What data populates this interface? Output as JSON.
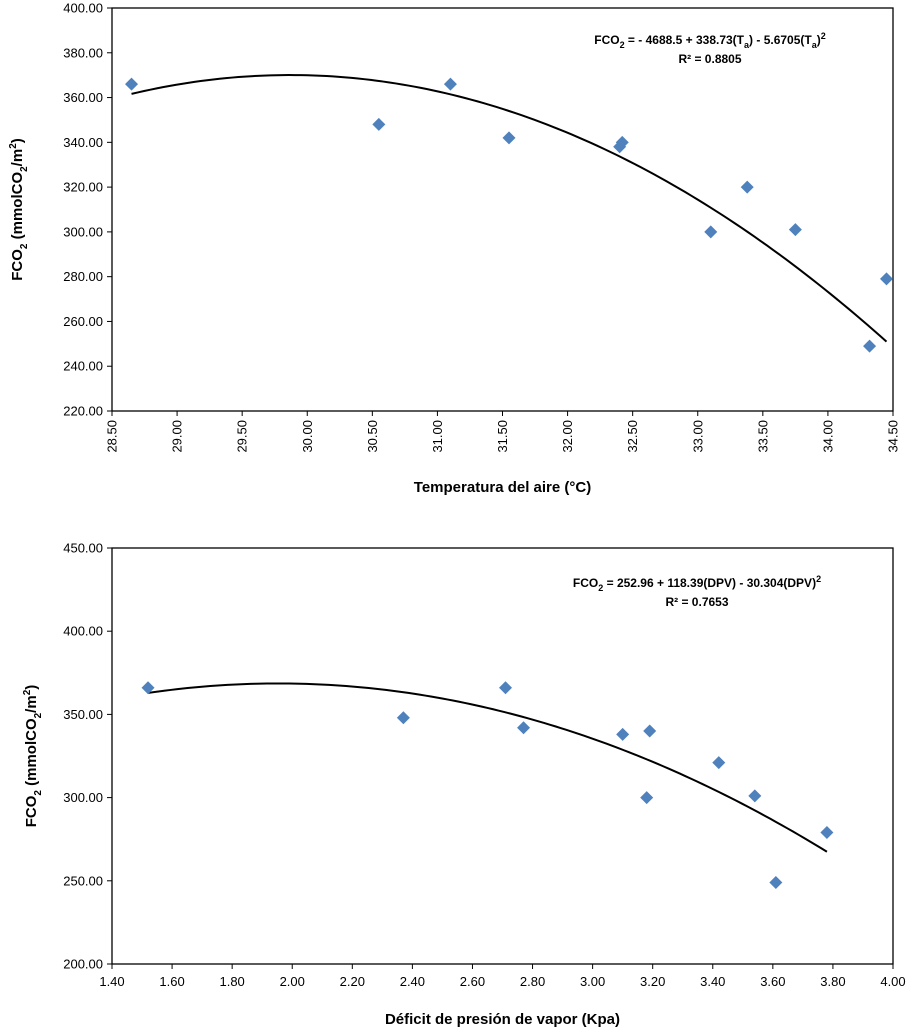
{
  "chart_data": [
    {
      "type": "scatter",
      "title": "",
      "xlabel": "Temperatura del aire (°C)",
      "ylabel": {
        "base": "FCO",
        "sub": "2",
        "mid": " (mmolCO",
        "sub2": "2",
        "tail": "/m",
        "sup": "2",
        "end": ")"
      },
      "xlim": [
        28.5,
        34.5
      ],
      "ylim": [
        220,
        400
      ],
      "x_ticks": [
        "28.50",
        "29.00",
        "29.50",
        "30.00",
        "30.50",
        "31.00",
        "31.50",
        "32.00",
        "32.50",
        "33.00",
        "33.50",
        "34.00",
        "34.50"
      ],
      "y_ticks": [
        "220.00",
        "240.00",
        "260.00",
        "280.00",
        "300.00",
        "320.00",
        "340.00",
        "360.00",
        "380.00",
        "400.00"
      ],
      "x_tick_rotation": "vertical",
      "grid": false,
      "marker_color": "#4f81bd",
      "line_color": "#000000",
      "points": [
        {
          "x": 28.65,
          "y": 366
        },
        {
          "x": 30.55,
          "y": 348
        },
        {
          "x": 31.1,
          "y": 366
        },
        {
          "x": 31.55,
          "y": 342
        },
        {
          "x": 32.4,
          "y": 338
        },
        {
          "x": 32.42,
          "y": 340
        },
        {
          "x": 33.1,
          "y": 300
        },
        {
          "x": 33.38,
          "y": 320
        },
        {
          "x": 33.75,
          "y": 301
        },
        {
          "x": 34.32,
          "y": 249
        },
        {
          "x": 34.45,
          "y": 279
        }
      ],
      "trendline": {
        "type": "polynomial",
        "order": 2,
        "coefficients": [
          -4688.5,
          338.73,
          -5.6705
        ],
        "x_range": [
          28.65,
          34.45
        ]
      },
      "equation": {
        "line1": [
          {
            "t": "FCO"
          },
          {
            "t": "2",
            "s": "sub"
          },
          {
            "t": " = - 4688.5 + 338.73(T"
          },
          {
            "t": "a",
            "s": "sub"
          },
          {
            "t": ") - 5.6705(T"
          },
          {
            "t": "a",
            "s": "sub"
          },
          {
            "t": ")"
          },
          {
            "t": "2",
            "s": "sup"
          }
        ],
        "line2": "R² = 0.8805"
      }
    },
    {
      "type": "scatter",
      "title": "",
      "xlabel": "Déficit de presión de vapor (Kpa)",
      "ylabel": {
        "base": "FCO",
        "sub": "2",
        "mid": " (mmolCO",
        "sub2": "2",
        "tail": "/m",
        "sup": "2",
        "end": ")"
      },
      "xlim": [
        1.4,
        4.0
      ],
      "ylim": [
        200,
        450
      ],
      "x_ticks": [
        "1.40",
        "1.60",
        "1.80",
        "2.00",
        "2.20",
        "2.40",
        "2.60",
        "2.80",
        "3.00",
        "3.20",
        "3.40",
        "3.60",
        "3.80",
        "4.00"
      ],
      "y_ticks": [
        "200.00",
        "250.00",
        "300.00",
        "350.00",
        "400.00",
        "450.00"
      ],
      "x_tick_rotation": "horizontal",
      "grid": false,
      "marker_color": "#4f81bd",
      "line_color": "#000000",
      "points": [
        {
          "x": 1.52,
          "y": 366
        },
        {
          "x": 2.37,
          "y": 348
        },
        {
          "x": 2.71,
          "y": 366
        },
        {
          "x": 2.77,
          "y": 342
        },
        {
          "x": 3.1,
          "y": 338
        },
        {
          "x": 3.18,
          "y": 300
        },
        {
          "x": 3.19,
          "y": 340
        },
        {
          "x": 3.42,
          "y": 321
        },
        {
          "x": 3.54,
          "y": 301
        },
        {
          "x": 3.61,
          "y": 249
        },
        {
          "x": 3.78,
          "y": 279
        }
      ],
      "trendline": {
        "type": "polynomial",
        "order": 2,
        "coefficients": [
          252.96,
          118.39,
          -30.304
        ],
        "x_range": [
          1.52,
          3.78
        ]
      },
      "equation": {
        "line1": [
          {
            "t": "FCO"
          },
          {
            "t": "2",
            "s": "sub"
          },
          {
            "t": " = 252.96 + 118.39(DPV) - 30.304(DPV)"
          },
          {
            "t": "2",
            "s": "sup"
          }
        ],
        "line2": "R² = 0.7653"
      }
    }
  ]
}
